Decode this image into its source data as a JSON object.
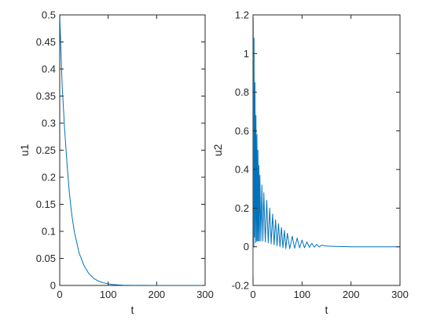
{
  "colors": {
    "series": "#0072bd",
    "axes": "#262626",
    "background": "#ffffff"
  },
  "chart_data": [
    {
      "type": "line",
      "title": "",
      "xlabel": "t",
      "ylabel": "u1",
      "xlim": [
        0,
        300
      ],
      "ylim": [
        0,
        0.5
      ],
      "xticks": [
        0,
        100,
        200,
        300
      ],
      "xtick_labels": [
        "0",
        "100",
        "200",
        "300"
      ],
      "yticks": [
        0,
        0.05,
        0.1,
        0.15,
        0.2,
        0.25,
        0.3,
        0.35,
        0.4,
        0.45,
        0.5
      ],
      "ytick_labels": [
        "0",
        "0.05",
        "0.1",
        "0.15",
        "0.2",
        "0.25",
        "0.3",
        "0.35",
        "0.4",
        "0.45",
        "0.5"
      ],
      "grid": false,
      "series": [
        {
          "x": [
            0,
            5,
            10,
            15,
            20,
            25,
            30,
            40,
            50,
            60,
            70,
            80,
            90,
            100,
            110,
            120,
            130,
            140,
            150,
            175,
            200,
            250,
            300
          ],
          "y": [
            0.5,
            0.37,
            0.29,
            0.225,
            0.17,
            0.13,
            0.1,
            0.06,
            0.037,
            0.022,
            0.013,
            0.008,
            0.0048,
            0.0029,
            0.0017,
            0.001,
            0.0006,
            0.0004,
            0.0002,
            0.0001,
            0,
            0,
            0
          ]
        }
      ]
    },
    {
      "type": "line",
      "title": "",
      "xlabel": "t",
      "ylabel": "u2",
      "xlim": [
        0,
        300
      ],
      "ylim": [
        -0.2,
        1.2
      ],
      "xticks": [
        0,
        100,
        200,
        300
      ],
      "xtick_labels": [
        "0",
        "100",
        "200",
        "300"
      ],
      "yticks": [
        -0.2,
        0,
        0.2,
        0.4,
        0.6,
        0.8,
        1,
        1.2
      ],
      "ytick_labels": [
        "-0.2",
        "0",
        "0.2",
        "0.4",
        "0.6",
        "0.8",
        "1",
        "1.2"
      ],
      "grid": false,
      "series": [
        {
          "x": [
            0,
            0.5,
            1,
            1.5,
            2,
            3,
            4,
            5,
            6,
            7,
            8,
            9,
            10,
            11,
            12,
            13,
            14,
            16,
            18,
            20,
            22,
            25,
            28,
            31,
            34,
            37,
            40,
            43,
            46,
            49,
            52,
            55,
            58,
            61,
            64,
            67,
            70,
            75,
            80,
            85,
            90,
            95,
            100,
            105,
            110,
            115,
            120,
            125,
            130,
            135,
            140,
            150,
            160,
            170,
            180,
            190,
            200,
            220,
            240,
            260,
            280,
            300
          ],
          "y": [
            -0.15,
            1.18,
            0.8,
            0.0,
            1.08,
            0.05,
            0.85,
            0.02,
            0.68,
            0.03,
            0.58,
            0.03,
            0.5,
            0.03,
            0.42,
            0.03,
            0.37,
            0.03,
            0.32,
            0.03,
            0.28,
            0.025,
            0.24,
            0.02,
            0.2,
            0.015,
            0.17,
            0.01,
            0.14,
            0.005,
            0.12,
            0.0,
            0.1,
            -0.005,
            0.085,
            -0.01,
            0.07,
            -0.01,
            0.055,
            -0.008,
            0.045,
            -0.006,
            0.035,
            -0.005,
            0.025,
            -0.003,
            0.018,
            -0.002,
            0.012,
            -0.001,
            0.008,
            0.004,
            0.003,
            0.002,
            0.001,
            0.001,
            0,
            0,
            0,
            0,
            0,
            0
          ]
        }
      ]
    }
  ]
}
